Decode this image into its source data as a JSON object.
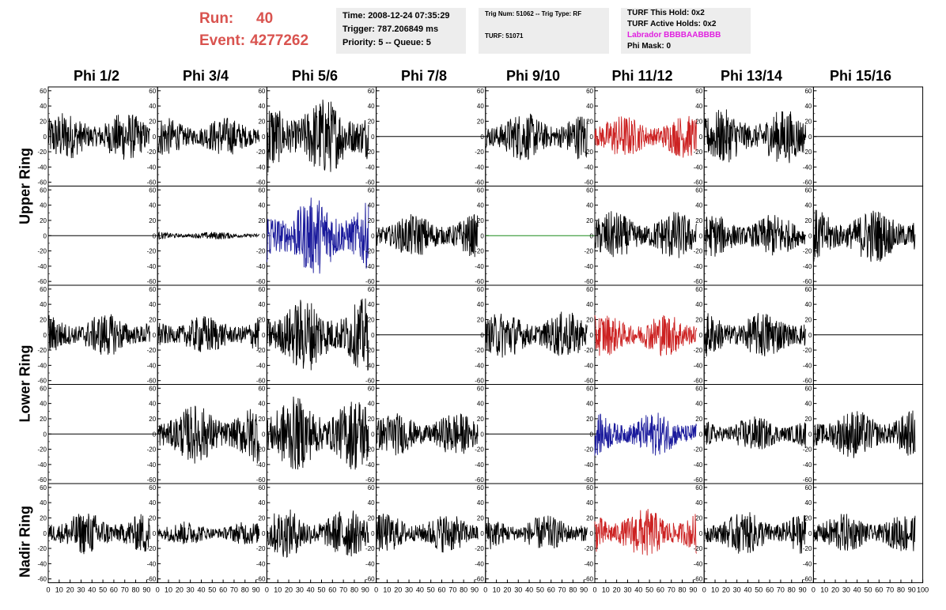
{
  "header": {
    "run_label": "Run:",
    "run_value": "40",
    "event_label": "Event:",
    "event_value": "4277262",
    "time": "Time: 2008-12-24 07:35:29",
    "trigger": "Trigger: 787.206849 ms",
    "priority": "Priority: 5 -- Queue: 5",
    "trig_num": "Trig Num: 51062 -- Trig Type: RF",
    "turf": "TURF: 51071",
    "turf_this_hold": "TURF This Hold: 0x2",
    "turf_active_holds": "TURF Active Holds: 0x2",
    "labrador": "Labrador BBBBAABBBB",
    "phi_mask": "Phi Mask: 0"
  },
  "colors": {
    "header_red": "#d9534f",
    "labrador_magenta": "#e020e0",
    "trace_black": "#000000",
    "trace_red": "#cc2222",
    "trace_blue": "#1a1a9c",
    "trace_green": "#1a8a1a",
    "info_box_bg": "#ededed"
  },
  "chart_data": {
    "type": "line",
    "columns": [
      "Phi 1/2",
      "Phi 3/4",
      "Phi 5/6",
      "Phi 7/8",
      "Phi 9/10",
      "Phi 11/12",
      "Phi 13/14",
      "Phi 15/16"
    ],
    "ring_labels": [
      "Upper Ring",
      "Lower Ring",
      "Nadir Ring"
    ],
    "xlim": [
      0,
      100
    ],
    "ylim": [
      -65,
      65
    ],
    "yticks": [
      -60,
      -40,
      -20,
      0,
      20,
      40,
      60
    ],
    "xticks": [
      0,
      10,
      20,
      30,
      40,
      50,
      60,
      70,
      80,
      90,
      100
    ],
    "rows": [
      {
        "ring": "Upper Ring",
        "panels": [
          {
            "color": "black",
            "amplitude": 25
          },
          {
            "color": "black",
            "amplitude": 20
          },
          {
            "color": "black",
            "amplitude": 40
          },
          {
            "color": "black",
            "amplitude": 0
          },
          {
            "color": "black",
            "amplitude": 25
          },
          {
            "color": "red",
            "amplitude": 22
          },
          {
            "color": "black",
            "amplitude": 28
          },
          {
            "color": "black",
            "amplitude": 0
          }
        ]
      },
      {
        "ring": "Upper Ring",
        "panels": [
          {
            "color": "black",
            "amplitude": 0
          },
          {
            "color": "black",
            "amplitude": 4
          },
          {
            "color": "blue",
            "amplitude": 40
          },
          {
            "color": "black",
            "amplitude": 22
          },
          {
            "color": "green",
            "amplitude": 0
          },
          {
            "color": "black",
            "amplitude": 25
          },
          {
            "color": "black",
            "amplitude": 22
          },
          {
            "color": "black",
            "amplitude": 28
          }
        ]
      },
      {
        "ring": "Lower Ring",
        "panels": [
          {
            "color": "black",
            "amplitude": 22
          },
          {
            "color": "black",
            "amplitude": 20
          },
          {
            "color": "black",
            "amplitude": 38
          },
          {
            "color": "black",
            "amplitude": 0
          },
          {
            "color": "black",
            "amplitude": 24
          },
          {
            "color": "red",
            "amplitude": 22
          },
          {
            "color": "black",
            "amplitude": 24
          },
          {
            "color": "black",
            "amplitude": 0
          }
        ]
      },
      {
        "ring": "Lower Ring",
        "panels": [
          {
            "color": "black",
            "amplitude": 0
          },
          {
            "color": "black",
            "amplitude": 30
          },
          {
            "color": "black",
            "amplitude": 38
          },
          {
            "color": "black",
            "amplitude": 22
          },
          {
            "color": "black",
            "amplitude": 0
          },
          {
            "color": "blue",
            "amplitude": 22
          },
          {
            "color": "black",
            "amplitude": 18
          },
          {
            "color": "black",
            "amplitude": 25
          }
        ]
      },
      {
        "ring": "Nadir Ring",
        "panels": [
          {
            "color": "black",
            "amplitude": 22
          },
          {
            "color": "black",
            "amplitude": 12
          },
          {
            "color": "black",
            "amplitude": 25
          },
          {
            "color": "black",
            "amplitude": 20
          },
          {
            "color": "black",
            "amplitude": 18
          },
          {
            "color": "red",
            "amplitude": 25
          },
          {
            "color": "black",
            "amplitude": 22
          },
          {
            "color": "black",
            "amplitude": 20
          }
        ]
      }
    ]
  }
}
